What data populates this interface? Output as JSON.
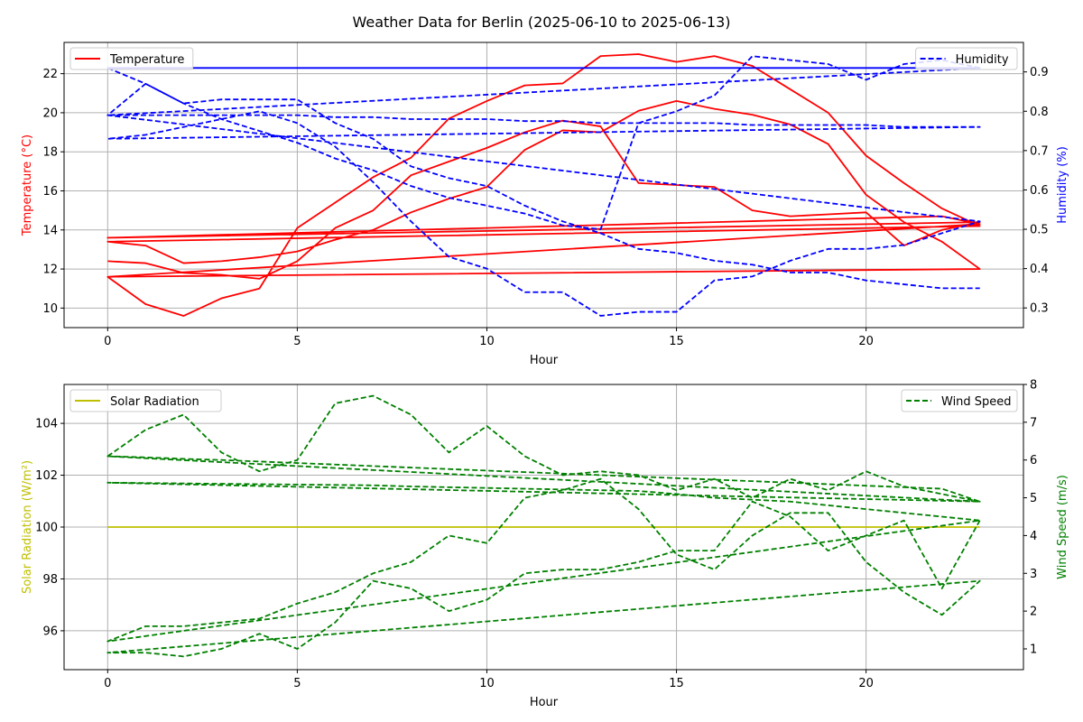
{
  "figure": {
    "title": "Weather Data for Berlin (2025-06-10 to 2025-06-13)"
  },
  "colors": {
    "temperature": "#ff0000",
    "humidity": "#0000ff",
    "solar": "#bfbf00",
    "wind": "#008000",
    "grid": "#b0b0b0",
    "axis": "#000000"
  },
  "chart_data": [
    {
      "type": "line",
      "title": "",
      "xlabel": "Hour",
      "ylabel": "Temperature (°C)",
      "y2label": "Humidity (%)",
      "xlim": [
        -1.15,
        24.15
      ],
      "ylim": [
        9.0,
        23.6
      ],
      "y2lim": [
        0.25,
        0.975
      ],
      "xticks": [
        0,
        5,
        10,
        15,
        20
      ],
      "yticks": [
        10,
        12,
        14,
        16,
        18,
        20,
        22
      ],
      "y2ticks": [
        0.3,
        0.4,
        0.5,
        0.6,
        0.7,
        0.8,
        0.9
      ],
      "grid": true,
      "legend_left": "upper-left",
      "legend_right": "upper-right",
      "series": [
        {
          "name": "Temperature",
          "axis": "left",
          "style": "solid",
          "x": [
            0,
            1,
            2,
            3,
            4,
            5,
            6,
            7,
            8,
            9,
            10,
            11,
            12,
            13,
            14,
            15,
            16,
            17,
            18,
            19,
            20,
            21,
            22,
            23,
            0,
            1,
            2,
            3,
            4,
            5,
            6,
            7,
            8,
            9,
            10,
            11,
            12,
            13,
            14,
            15,
            16,
            17,
            18,
            19,
            20,
            21,
            22,
            23,
            0,
            1,
            2,
            3,
            4,
            5,
            6,
            7,
            8,
            9,
            10,
            11,
            12,
            13,
            14,
            15,
            16,
            17,
            18,
            19,
            20,
            21,
            22,
            23,
            0,
            1,
            2,
            3,
            4,
            5,
            6,
            7,
            8,
            9,
            10,
            11,
            12,
            13,
            14,
            15,
            16,
            17,
            18,
            19,
            20,
            21,
            22,
            23,
            0
          ],
          "y": [
            12.4,
            12.3,
            11.8,
            11.7,
            11.5,
            12.4,
            14.1,
            15.0,
            16.8,
            17.5,
            18.2,
            19.0,
            19.6,
            19.3,
            16.4,
            16.3,
            16.2,
            15.0,
            14.7,
            14.8,
            14.9,
            13.2,
            14.0,
            14.4,
            13.6,
            13.65,
            13.7,
            13.75,
            13.8,
            13.85,
            13.9,
            13.95,
            14.0,
            14.05,
            14.1,
            14.15,
            14.2,
            14.25,
            14.3,
            14.35,
            14.4,
            14.45,
            14.5,
            14.55,
            14.6,
            14.65,
            14.7,
            14.3,
            11.6,
            10.2,
            9.6,
            10.5,
            11.0,
            14.1,
            15.4,
            16.7,
            17.7,
            19.7,
            20.6,
            21.4,
            21.5,
            22.9,
            23.0,
            22.6,
            22.9,
            22.4,
            21.2,
            20.0,
            17.8,
            16.4,
            15.1,
            14.2,
            13.4,
            13.2,
            12.3,
            12.4,
            12.6,
            12.9,
            13.5,
            14.0,
            14.9,
            15.6,
            16.2,
            18.1,
            19.1,
            19.0,
            20.1,
            20.6,
            20.2,
            19.9,
            19.4,
            18.4,
            15.8,
            14.4,
            13.4,
            12.0,
            11.6
          ]
        },
        {
          "name": "Humidity",
          "axis": "right",
          "style": "dashed",
          "x": [
            0,
            1,
            2,
            3,
            4,
            5,
            6,
            7,
            8,
            9,
            10,
            11,
            12,
            13,
            14,
            15,
            16,
            17,
            18,
            19,
            20,
            21,
            22,
            23,
            0,
            1,
            2,
            3,
            4,
            5,
            6,
            7,
            8,
            9,
            10,
            11,
            12,
            13,
            14,
            15,
            16,
            17,
            18,
            19,
            20,
            21,
            22,
            23,
            0,
            1,
            2,
            3,
            4,
            5,
            6,
            7,
            8,
            9,
            10,
            11,
            12,
            13,
            14,
            15,
            16,
            17,
            18,
            19,
            20,
            21,
            22,
            23,
            0,
            1,
            2,
            3,
            4,
            5,
            6,
            7,
            8,
            9,
            10,
            11,
            12,
            13,
            14,
            15,
            16,
            17,
            18,
            19,
            20,
            21,
            22,
            23,
            0,
            1,
            2,
            3,
            4,
            5,
            6,
            7,
            8,
            9,
            10,
            11,
            12,
            13,
            14,
            15,
            16,
            17,
            18,
            19,
            20,
            21,
            22,
            23
          ],
          "y": [
            0.91,
            0.87,
            0.82,
            0.78,
            0.75,
            0.72,
            0.68,
            0.65,
            0.61,
            0.58,
            0.56,
            0.54,
            0.51,
            0.5,
            0.77,
            0.8,
            0.84,
            0.94,
            0.93,
            0.92,
            0.88,
            0.92,
            0.93,
            0.91,
            0.91,
            0.91,
            0.91,
            0.91,
            0.91,
            0.91,
            0.91,
            0.91,
            0.91,
            0.91,
            0.91,
            0.91,
            0.91,
            0.91,
            0.91,
            0.91,
            0.91,
            0.91,
            0.91,
            0.91,
            0.91,
            0.91,
            0.91,
            0.91,
            0.79,
            0.79,
            0.79,
            0.79,
            0.79,
            0.79,
            0.785,
            0.785,
            0.78,
            0.78,
            0.78,
            0.775,
            0.775,
            0.77,
            0.77,
            0.77,
            0.77,
            0.765,
            0.765,
            0.765,
            0.765,
            0.76,
            0.76,
            0.76,
            0.73,
            0.74,
            0.76,
            0.78,
            0.8,
            0.77,
            0.71,
            0.62,
            0.52,
            0.43,
            0.4,
            0.34,
            0.34,
            0.28,
            0.29,
            0.29,
            0.37,
            0.38,
            0.42,
            0.45,
            0.45,
            0.46,
            0.49,
            0.52,
            0.79,
            0.87,
            0.82,
            0.83,
            0.83,
            0.83,
            0.77,
            0.73,
            0.66,
            0.63,
            0.61,
            0.56,
            0.52,
            0.49,
            0.45,
            0.44,
            0.42,
            0.41,
            0.39,
            0.39,
            0.37,
            0.36,
            0.35,
            0.35
          ]
        }
      ]
    },
    {
      "type": "line",
      "title": "",
      "xlabel": "Hour",
      "ylabel": "Solar Radiation (W/m²)",
      "y2label": "Wind Speed (m/s)",
      "xlim": [
        -1.15,
        24.15
      ],
      "ylim": [
        94.5,
        105.5
      ],
      "y2lim": [
        0.45,
        8.0
      ],
      "xticks": [
        0,
        5,
        10,
        15,
        20
      ],
      "yticks": [
        96,
        98,
        100,
        102,
        104
      ],
      "y2ticks": [
        1,
        2,
        3,
        4,
        5,
        6,
        7,
        8
      ],
      "grid": true,
      "legend_left": "upper-left",
      "legend_right": "upper-right",
      "series": [
        {
          "name": "Solar Radiation",
          "axis": "left",
          "style": "solid",
          "x": [
            0,
            23
          ],
          "y": [
            100,
            100
          ]
        },
        {
          "name": "Wind Speed",
          "axis": "right",
          "style": "dashed",
          "x": [
            0,
            1,
            2,
            3,
            4,
            5,
            6,
            7,
            8,
            9,
            10,
            11,
            12,
            13,
            14,
            15,
            16,
            17,
            18,
            19,
            20,
            21,
            22,
            23,
            0,
            1,
            2,
            3,
            4,
            5,
            6,
            7,
            8,
            9,
            10,
            11,
            12,
            13,
            14,
            15,
            16,
            17,
            18,
            19,
            20,
            21,
            22,
            23,
            0,
            1,
            2,
            3,
            4,
            5,
            6,
            7,
            8,
            9,
            10,
            11,
            12,
            13,
            14,
            15,
            16,
            17,
            18,
            19,
            20,
            21,
            22,
            23,
            0,
            1,
            2,
            3,
            4,
            5,
            6,
            7,
            8,
            9,
            10,
            11,
            12,
            13,
            14,
            15,
            16,
            17,
            18,
            19,
            20,
            21,
            22,
            23,
            0,
            1,
            2,
            3,
            4,
            5,
            6,
            7,
            8,
            9,
            10,
            11,
            12,
            13,
            14,
            15,
            16,
            17,
            18,
            19,
            20,
            21,
            22,
            23
          ],
          "y": [
            6.1,
            6.8,
            7.2,
            6.2,
            5.7,
            6.0,
            7.5,
            7.7,
            7.2,
            6.2,
            6.9,
            6.1,
            5.6,
            5.7,
            5.6,
            5.2,
            5.5,
            5.0,
            5.5,
            5.2,
            5.7,
            5.3,
            5.1,
            4.9,
            6.1,
            6.07,
            6.03,
            6.0,
            5.96,
            5.92,
            5.88,
            5.84,
            5.8,
            5.76,
            5.72,
            5.68,
            5.64,
            5.6,
            5.56,
            5.52,
            5.48,
            5.44,
            5.4,
            5.36,
            5.32,
            5.28,
            5.24,
            4.9,
            5.4,
            5.39,
            5.38,
            5.37,
            5.36,
            5.35,
            5.34,
            5.33,
            5.3,
            5.28,
            5.26,
            5.24,
            5.22,
            5.2,
            5.18,
            5.1,
            5.0,
            4.95,
            4.9,
            4.8,
            4.7,
            4.6,
            4.5,
            4.4,
            1.2,
            1.6,
            1.6,
            1.7,
            1.8,
            2.2,
            2.5,
            3.0,
            3.3,
            4.0,
            3.8,
            5.0,
            5.2,
            5.5,
            4.7,
            3.5,
            3.1,
            4.0,
            4.6,
            4.6,
            3.3,
            2.5,
            1.9,
            2.8,
            0.9,
            0.9,
            0.8,
            1.0,
            1.4,
            1.0,
            1.7,
            2.8,
            2.6,
            2.0,
            2.3,
            3.0,
            3.1,
            3.1,
            3.3,
            3.6,
            3.6,
            4.9,
            4.5,
            3.6,
            4.0,
            4.4,
            2.6,
            4.4
          ]
        }
      ]
    }
  ]
}
